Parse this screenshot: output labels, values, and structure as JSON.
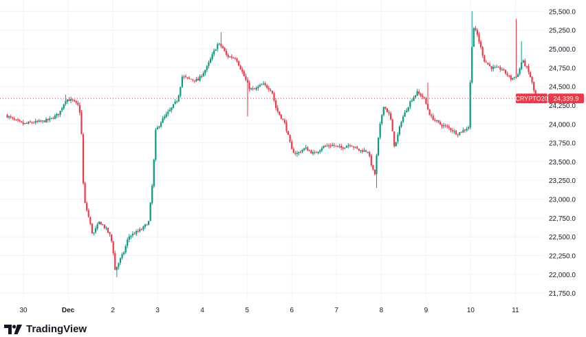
{
  "chart_data": {
    "type": "candlestick",
    "symbol": "CRYPTO20",
    "last_price": "24,339.9",
    "ylim": [
      21650,
      25650
    ],
    "y_ticks": [
      "25,500.0",
      "25,250.0",
      "25,000.0",
      "24,750.0",
      "24,500.0",
      "24,250.0",
      "24,000.0",
      "23,750.0",
      "23,500.0",
      "23,250.0",
      "23,000.0",
      "22,750.0",
      "22,500.0",
      "22,250.0",
      "22,000.0",
      "21,750.0"
    ],
    "y_tick_values": [
      25500,
      25250,
      25000,
      24750,
      24500,
      24250,
      24000,
      23750,
      23500,
      23250,
      23000,
      22750,
      22500,
      22250,
      22000,
      21750
    ],
    "x_ticks": [
      "30",
      "Dec",
      "2",
      "3",
      "4",
      "5",
      "6",
      "7",
      "8",
      "9",
      "10",
      "11"
    ],
    "x_tick_values": [
      0.5,
      1.5,
      2.5,
      3.5,
      4.5,
      5.5,
      6.5,
      7.5,
      8.5,
      9.5,
      10.5,
      11.5
    ],
    "x_range": [
      0.1,
      12.0
    ],
    "close_path": [
      [
        0.1,
        24120
      ],
      [
        0.3,
        24050
      ],
      [
        0.5,
        24000
      ],
      [
        0.7,
        24020
      ],
      [
        0.9,
        24030
      ],
      [
        1.1,
        24060
      ],
      [
        1.3,
        24140
      ],
      [
        1.45,
        24330
      ],
      [
        1.6,
        24310
      ],
      [
        1.75,
        24230
      ],
      [
        1.8,
        23850
      ],
      [
        1.85,
        23000
      ],
      [
        1.95,
        22780
      ],
      [
        2.05,
        22520
      ],
      [
        2.2,
        22700
      ],
      [
        2.35,
        22600
      ],
      [
        2.45,
        22500
      ],
      [
        2.5,
        22350
      ],
      [
        2.55,
        22050
      ],
      [
        2.6,
        22120
      ],
      [
        2.75,
        22300
      ],
      [
        2.85,
        22500
      ],
      [
        3.0,
        22550
      ],
      [
        3.15,
        22600
      ],
      [
        3.3,
        22700
      ],
      [
        3.4,
        23300
      ],
      [
        3.45,
        23900
      ],
      [
        3.6,
        24050
      ],
      [
        3.8,
        24200
      ],
      [
        3.95,
        24330
      ],
      [
        4.05,
        24630
      ],
      [
        4.2,
        24600
      ],
      [
        4.4,
        24580
      ],
      [
        4.6,
        24750
      ],
      [
        4.75,
        24950
      ],
      [
        4.85,
        25070
      ],
      [
        4.95,
        25020
      ],
      [
        5.05,
        24900
      ],
      [
        5.25,
        24880
      ],
      [
        5.4,
        24680
      ],
      [
        5.55,
        24480
      ],
      [
        5.65,
        24450
      ],
      [
        5.85,
        24530
      ],
      [
        6.05,
        24450
      ],
      [
        6.15,
        24200
      ],
      [
        6.35,
        24000
      ],
      [
        6.5,
        23650
      ],
      [
        6.6,
        23600
      ],
      [
        6.8,
        23680
      ],
      [
        7.0,
        23600
      ],
      [
        7.2,
        23700
      ],
      [
        7.4,
        23720
      ],
      [
        7.6,
        23680
      ],
      [
        7.8,
        23730
      ],
      [
        8.0,
        23650
      ],
      [
        8.2,
        23640
      ],
      [
        8.35,
        23300
      ],
      [
        8.45,
        23900
      ],
      [
        8.55,
        24250
      ],
      [
        8.7,
        24100
      ],
      [
        8.8,
        23680
      ],
      [
        8.95,
        24050
      ],
      [
        9.15,
        24300
      ],
      [
        9.3,
        24420
      ],
      [
        9.45,
        24350
      ],
      [
        9.6,
        24100
      ],
      [
        9.8,
        24000
      ],
      [
        10.0,
        23950
      ],
      [
        10.2,
        23870
      ],
      [
        10.35,
        23920
      ],
      [
        10.45,
        23960
      ],
      [
        10.5,
        24720
      ],
      [
        10.55,
        25300
      ],
      [
        10.65,
        25180
      ],
      [
        10.8,
        24850
      ],
      [
        10.95,
        24750
      ],
      [
        11.2,
        24730
      ],
      [
        11.4,
        24600
      ],
      [
        11.55,
        24650
      ],
      [
        11.65,
        24850
      ],
      [
        11.75,
        24750
      ],
      [
        11.85,
        24600
      ],
      [
        11.95,
        24339.9
      ]
    ],
    "wick_spikes": [
      [
        4.9,
        25220
      ],
      [
        5.5,
        24100
      ],
      [
        9.55,
        24550
      ],
      [
        10.52,
        25500
      ],
      [
        11.52,
        25400
      ],
      [
        11.62,
        25100
      ],
      [
        2.6,
        21960
      ],
      [
        8.4,
        23150
      ],
      [
        1.45,
        24390
      ],
      [
        2.5,
        22250
      ]
    ]
  },
  "colors": {
    "up": "#089981",
    "down": "#f23645",
    "grid": "#f0f3fa",
    "axis_text": "#131722",
    "price_line": "#f23645",
    "label_bg": "#f23645",
    "label_text": "#ffffff"
  },
  "branding": {
    "name": "TradingView",
    "icon": "tradingview-logo-icon"
  }
}
